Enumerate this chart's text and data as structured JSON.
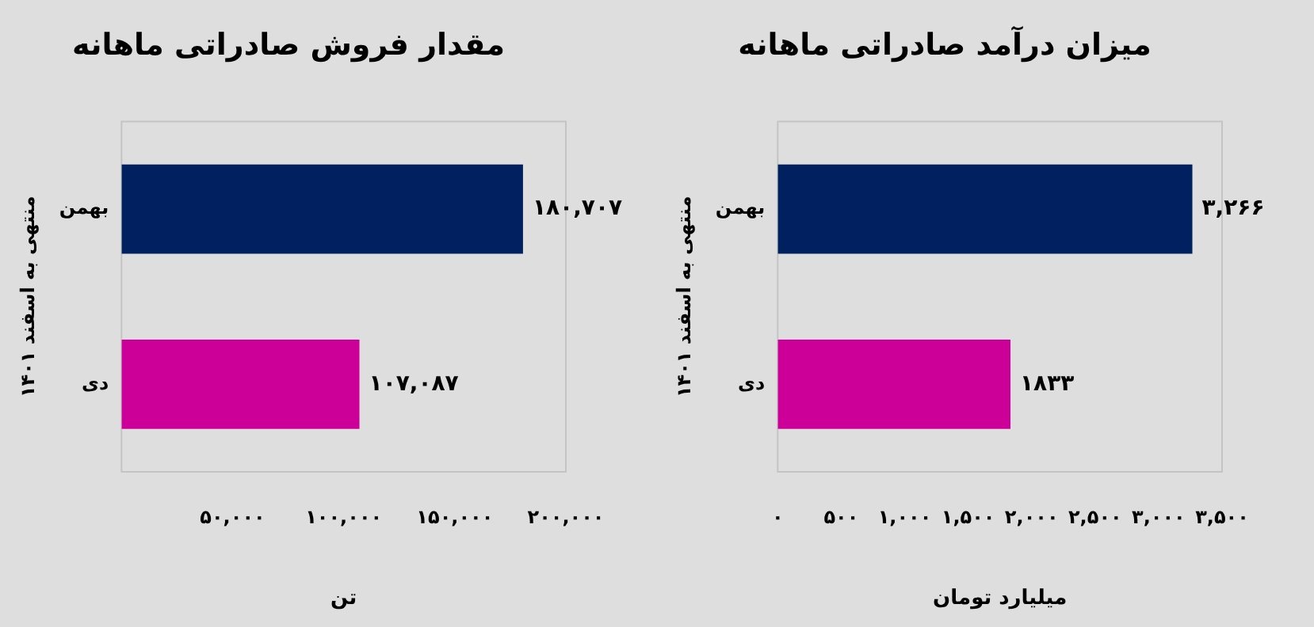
{
  "chart_data": [
    {
      "type": "bar",
      "orientation": "horizontal",
      "title": "میزان درآمد صادراتی ماهانه",
      "xlabel": "میلیارد تومان",
      "ylabel": "منتهی به اسفند ۱۴۰۱",
      "categories": [
        "بهمن",
        "دی"
      ],
      "values": [
        3266,
        1833
      ],
      "colors": [
        "#002060",
        "#cc0099"
      ],
      "value_labels": [
        "۳,۲۶۶",
        "۱۸۳۳"
      ],
      "xlim": [
        0,
        3500
      ],
      "xticks": [
        {
          "value": 0,
          "label": "۰"
        },
        {
          "value": 500,
          "label": "۵۰۰"
        },
        {
          "value": 1000,
          "label": "۱,۰۰۰"
        },
        {
          "value": 1500,
          "label": "۱,۵۰۰"
        },
        {
          "value": 2000,
          "label": "۲,۰۰۰"
        },
        {
          "value": 2500,
          "label": "۲,۵۰۰"
        },
        {
          "value": 3000,
          "label": "۳,۰۰۰"
        },
        {
          "value": 3500,
          "label": "۳,۵۰۰"
        }
      ],
      "grid": false,
      "legend": false
    },
    {
      "type": "bar",
      "orientation": "horizontal",
      "title": "مقدار فروش صادراتی ماهانه",
      "xlabel": "تن",
      "ylabel": "منتهی به اسفند ۱۴۰۱",
      "categories": [
        "بهمن",
        "دی"
      ],
      "values": [
        180707,
        107087
      ],
      "colors": [
        "#002060",
        "#cc0099"
      ],
      "value_labels": [
        "۱۸۰,۷۰۷",
        "۱۰۷,۰۸۷"
      ],
      "xlim": [
        0,
        200000
      ],
      "xticks": [
        {
          "value": 0,
          "label": null
        },
        {
          "value": 50000,
          "label": "۵۰,۰۰۰"
        },
        {
          "value": 100000,
          "label": "۱۰۰,۰۰۰"
        },
        {
          "value": 150000,
          "label": "۱۵۰,۰۰۰"
        },
        {
          "value": 200000,
          "label": "۲۰۰,۰۰۰"
        }
      ],
      "grid": false,
      "legend": false
    }
  ]
}
